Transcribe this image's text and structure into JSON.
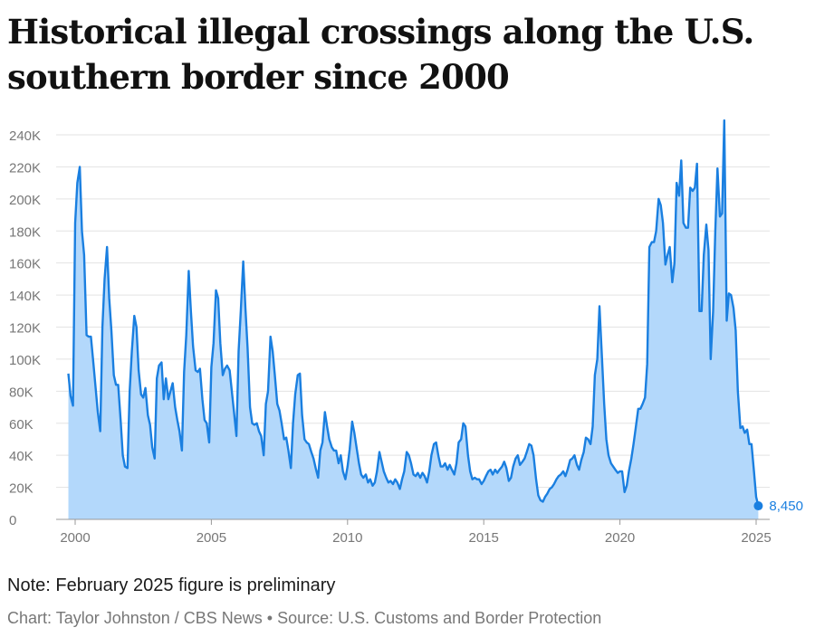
{
  "title": "Historical illegal crossings along the U.S. southern border since 2000",
  "note": "Note: February 2025 figure is preliminary",
  "credit": "Chart: Taylor Johnston / CBS News • Source: U.S. Customs and Border Protection",
  "colors": {
    "line": "#1a7fe0",
    "fill": "#b3d8fb",
    "grid": "#e3e3e3",
    "tick": "#777777",
    "label": "#1a7fe0"
  },
  "chart_data": {
    "type": "area",
    "grid": true,
    "ylim": [
      0,
      250000
    ],
    "xlim": [
      1999.75,
      2025.17
    ],
    "y_ticks": [
      {
        "value": 0,
        "label": "0"
      },
      {
        "value": 20000,
        "label": "20K"
      },
      {
        "value": 40000,
        "label": "40K"
      },
      {
        "value": 60000,
        "label": "60K"
      },
      {
        "value": 80000,
        "label": "80K"
      },
      {
        "value": 100000,
        "label": "100K"
      },
      {
        "value": 120000,
        "label": "120K"
      },
      {
        "value": 140000,
        "label": "140K"
      },
      {
        "value": 160000,
        "label": "160K"
      },
      {
        "value": 180000,
        "label": "180K"
      },
      {
        "value": 200000,
        "label": "200K"
      },
      {
        "value": 220000,
        "label": "220K"
      },
      {
        "value": 240000,
        "label": "240K"
      }
    ],
    "x_ticks": [
      {
        "value": 2000,
        "label": "2000"
      },
      {
        "value": 2005,
        "label": "2005"
      },
      {
        "value": 2010,
        "label": "2010"
      },
      {
        "value": 2015,
        "label": "2015"
      },
      {
        "value": 2020,
        "label": "2020"
      },
      {
        "value": 2025,
        "label": "2025"
      }
    ],
    "end_label": "8,450",
    "points": [
      [
        1999.75,
        91000
      ],
      [
        1999.83,
        77000
      ],
      [
        1999.92,
        71000
      ],
      [
        2000.0,
        185000
      ],
      [
        2000.08,
        210000
      ],
      [
        2000.17,
        220000
      ],
      [
        2000.25,
        180000
      ],
      [
        2000.33,
        165000
      ],
      [
        2000.42,
        115000
      ],
      [
        2000.5,
        114000
      ],
      [
        2000.58,
        114000
      ],
      [
        2000.67,
        97000
      ],
      [
        2000.75,
        82000
      ],
      [
        2000.83,
        67000
      ],
      [
        2000.92,
        55000
      ],
      [
        2001.0,
        120000
      ],
      [
        2001.08,
        150000
      ],
      [
        2001.17,
        170000
      ],
      [
        2001.25,
        138000
      ],
      [
        2001.33,
        118000
      ],
      [
        2001.42,
        90000
      ],
      [
        2001.5,
        84000
      ],
      [
        2001.58,
        84000
      ],
      [
        2001.67,
        62000
      ],
      [
        2001.75,
        40000
      ],
      [
        2001.83,
        33000
      ],
      [
        2001.92,
        32000
      ],
      [
        2002.0,
        80000
      ],
      [
        2002.08,
        105000
      ],
      [
        2002.17,
        127000
      ],
      [
        2002.25,
        120000
      ],
      [
        2002.33,
        93000
      ],
      [
        2002.42,
        78000
      ],
      [
        2002.5,
        76000
      ],
      [
        2002.58,
        82000
      ],
      [
        2002.67,
        65000
      ],
      [
        2002.75,
        59000
      ],
      [
        2002.83,
        45000
      ],
      [
        2002.92,
        38000
      ],
      [
        2003.0,
        88000
      ],
      [
        2003.08,
        96000
      ],
      [
        2003.17,
        98000
      ],
      [
        2003.25,
        75000
      ],
      [
        2003.33,
        88000
      ],
      [
        2003.42,
        75000
      ],
      [
        2003.5,
        80000
      ],
      [
        2003.58,
        85000
      ],
      [
        2003.67,
        70000
      ],
      [
        2003.75,
        62000
      ],
      [
        2003.83,
        55000
      ],
      [
        2003.92,
        43000
      ],
      [
        2004.0,
        92000
      ],
      [
        2004.08,
        115000
      ],
      [
        2004.17,
        155000
      ],
      [
        2004.25,
        130000
      ],
      [
        2004.33,
        108000
      ],
      [
        2004.42,
        93000
      ],
      [
        2004.5,
        92000
      ],
      [
        2004.58,
        94000
      ],
      [
        2004.67,
        75000
      ],
      [
        2004.75,
        62000
      ],
      [
        2004.83,
        60000
      ],
      [
        2004.92,
        48000
      ],
      [
        2005.0,
        95000
      ],
      [
        2005.08,
        110000
      ],
      [
        2005.17,
        143000
      ],
      [
        2005.25,
        138000
      ],
      [
        2005.33,
        110000
      ],
      [
        2005.42,
        90000
      ],
      [
        2005.5,
        94000
      ],
      [
        2005.58,
        96000
      ],
      [
        2005.67,
        93000
      ],
      [
        2005.75,
        80000
      ],
      [
        2005.83,
        67000
      ],
      [
        2005.92,
        52000
      ],
      [
        2006.0,
        105000
      ],
      [
        2006.08,
        130000
      ],
      [
        2006.17,
        161000
      ],
      [
        2006.25,
        132000
      ],
      [
        2006.33,
        107000
      ],
      [
        2006.42,
        70000
      ],
      [
        2006.5,
        60000
      ],
      [
        2006.58,
        59000
      ],
      [
        2006.67,
        60000
      ],
      [
        2006.75,
        55000
      ],
      [
        2006.83,
        52000
      ],
      [
        2006.92,
        40000
      ],
      [
        2007.0,
        72000
      ],
      [
        2007.08,
        80000
      ],
      [
        2007.17,
        114000
      ],
      [
        2007.25,
        105000
      ],
      [
        2007.33,
        90000
      ],
      [
        2007.42,
        72000
      ],
      [
        2007.5,
        68000
      ],
      [
        2007.58,
        60000
      ],
      [
        2007.67,
        50000
      ],
      [
        2007.75,
        51000
      ],
      [
        2007.83,
        43000
      ],
      [
        2007.92,
        32000
      ],
      [
        2008.0,
        60000
      ],
      [
        2008.08,
        78000
      ],
      [
        2008.17,
        90000
      ],
      [
        2008.25,
        91000
      ],
      [
        2008.33,
        65000
      ],
      [
        2008.42,
        50000
      ],
      [
        2008.5,
        48000
      ],
      [
        2008.58,
        47000
      ],
      [
        2008.67,
        42000
      ],
      [
        2008.75,
        38000
      ],
      [
        2008.83,
        32000
      ],
      [
        2008.92,
        26000
      ],
      [
        2009.0,
        43000
      ],
      [
        2009.08,
        48000
      ],
      [
        2009.17,
        67000
      ],
      [
        2009.25,
        58000
      ],
      [
        2009.33,
        50000
      ],
      [
        2009.42,
        45000
      ],
      [
        2009.5,
        43000
      ],
      [
        2009.58,
        43000
      ],
      [
        2009.67,
        35000
      ],
      [
        2009.75,
        40000
      ],
      [
        2009.83,
        30000
      ],
      [
        2009.92,
        25000
      ],
      [
        2010.0,
        33000
      ],
      [
        2010.08,
        44000
      ],
      [
        2010.17,
        61000
      ],
      [
        2010.25,
        54000
      ],
      [
        2010.33,
        45000
      ],
      [
        2010.42,
        35000
      ],
      [
        2010.5,
        28000
      ],
      [
        2010.58,
        26000
      ],
      [
        2010.67,
        28000
      ],
      [
        2010.75,
        23000
      ],
      [
        2010.83,
        25000
      ],
      [
        2010.92,
        21000
      ],
      [
        2011.0,
        23000
      ],
      [
        2011.08,
        30000
      ],
      [
        2011.17,
        42000
      ],
      [
        2011.25,
        36000
      ],
      [
        2011.33,
        30000
      ],
      [
        2011.42,
        26000
      ],
      [
        2011.5,
        23000
      ],
      [
        2011.58,
        24000
      ],
      [
        2011.67,
        22000
      ],
      [
        2011.75,
        25000
      ],
      [
        2011.83,
        23000
      ],
      [
        2011.92,
        19000
      ],
      [
        2012.0,
        25000
      ],
      [
        2012.08,
        30000
      ],
      [
        2012.17,
        42000
      ],
      [
        2012.25,
        40000
      ],
      [
        2012.33,
        35000
      ],
      [
        2012.42,
        28000
      ],
      [
        2012.5,
        27000
      ],
      [
        2012.58,
        29000
      ],
      [
        2012.67,
        26000
      ],
      [
        2012.75,
        29000
      ],
      [
        2012.83,
        27000
      ],
      [
        2012.92,
        23000
      ],
      [
        2013.0,
        30000
      ],
      [
        2013.08,
        40000
      ],
      [
        2013.17,
        47000
      ],
      [
        2013.25,
        48000
      ],
      [
        2013.33,
        40000
      ],
      [
        2013.42,
        33000
      ],
      [
        2013.5,
        33000
      ],
      [
        2013.58,
        35000
      ],
      [
        2013.67,
        31000
      ],
      [
        2013.75,
        34000
      ],
      [
        2013.83,
        31000
      ],
      [
        2013.92,
        28000
      ],
      [
        2014.0,
        35000
      ],
      [
        2014.08,
        48000
      ],
      [
        2014.17,
        50000
      ],
      [
        2014.25,
        60000
      ],
      [
        2014.33,
        58000
      ],
      [
        2014.42,
        40000
      ],
      [
        2014.5,
        30000
      ],
      [
        2014.58,
        25000
      ],
      [
        2014.67,
        26000
      ],
      [
        2014.75,
        25000
      ],
      [
        2014.83,
        25000
      ],
      [
        2014.92,
        22000
      ],
      [
        2015.0,
        24000
      ],
      [
        2015.08,
        27000
      ],
      [
        2015.17,
        30000
      ],
      [
        2015.25,
        31000
      ],
      [
        2015.33,
        28000
      ],
      [
        2015.42,
        31000
      ],
      [
        2015.5,
        29000
      ],
      [
        2015.58,
        31000
      ],
      [
        2015.67,
        33000
      ],
      [
        2015.75,
        36000
      ],
      [
        2015.83,
        32000
      ],
      [
        2015.92,
        24000
      ],
      [
        2016.0,
        26000
      ],
      [
        2016.08,
        33000
      ],
      [
        2016.17,
        38000
      ],
      [
        2016.25,
        40000
      ],
      [
        2016.33,
        34000
      ],
      [
        2016.42,
        36000
      ],
      [
        2016.5,
        38000
      ],
      [
        2016.58,
        42000
      ],
      [
        2016.67,
        47000
      ],
      [
        2016.75,
        46000
      ],
      [
        2016.83,
        40000
      ],
      [
        2016.92,
        25000
      ],
      [
        2017.0,
        15000
      ],
      [
        2017.08,
        12000
      ],
      [
        2017.17,
        11000
      ],
      [
        2017.25,
        14000
      ],
      [
        2017.33,
        16000
      ],
      [
        2017.42,
        19000
      ],
      [
        2017.5,
        20000
      ],
      [
        2017.58,
        22000
      ],
      [
        2017.67,
        25000
      ],
      [
        2017.75,
        27000
      ],
      [
        2017.83,
        28000
      ],
      [
        2017.92,
        30000
      ],
      [
        2018.0,
        27000
      ],
      [
        2018.08,
        31000
      ],
      [
        2018.17,
        37000
      ],
      [
        2018.25,
        38000
      ],
      [
        2018.33,
        40000
      ],
      [
        2018.42,
        34000
      ],
      [
        2018.5,
        31000
      ],
      [
        2018.58,
        37000
      ],
      [
        2018.67,
        42000
      ],
      [
        2018.75,
        51000
      ],
      [
        2018.83,
        50000
      ],
      [
        2018.92,
        47000
      ],
      [
        2019.0,
        58000
      ],
      [
        2019.08,
        90000
      ],
      [
        2019.17,
        100000
      ],
      [
        2019.25,
        133000
      ],
      [
        2019.33,
        105000
      ],
      [
        2019.42,
        72000
      ],
      [
        2019.5,
        50000
      ],
      [
        2019.58,
        40000
      ],
      [
        2019.67,
        35000
      ],
      [
        2019.75,
        33000
      ],
      [
        2019.83,
        31000
      ],
      [
        2019.92,
        29000
      ],
      [
        2020.0,
        30000
      ],
      [
        2020.08,
        30000
      ],
      [
        2020.17,
        17000
      ],
      [
        2020.25,
        21000
      ],
      [
        2020.33,
        30000
      ],
      [
        2020.42,
        38000
      ],
      [
        2020.5,
        47000
      ],
      [
        2020.58,
        57000
      ],
      [
        2020.67,
        69000
      ],
      [
        2020.75,
        69000
      ],
      [
        2020.83,
        72000
      ],
      [
        2020.92,
        76000
      ],
      [
        2021.0,
        97000
      ],
      [
        2021.08,
        170000
      ],
      [
        2021.17,
        173000
      ],
      [
        2021.25,
        173000
      ],
      [
        2021.33,
        180000
      ],
      [
        2021.42,
        200000
      ],
      [
        2021.5,
        196000
      ],
      [
        2021.58,
        185000
      ],
      [
        2021.67,
        159000
      ],
      [
        2021.75,
        165000
      ],
      [
        2021.83,
        170000
      ],
      [
        2021.92,
        148000
      ],
      [
        2022.0,
        160000
      ],
      [
        2022.08,
        210000
      ],
      [
        2022.17,
        202000
      ],
      [
        2022.25,
        224000
      ],
      [
        2022.33,
        185000
      ],
      [
        2022.42,
        182000
      ],
      [
        2022.5,
        182000
      ],
      [
        2022.58,
        207000
      ],
      [
        2022.67,
        205000
      ],
      [
        2022.75,
        207000
      ],
      [
        2022.83,
        222000
      ],
      [
        2022.92,
        130000
      ],
      [
        2023.0,
        130000
      ],
      [
        2023.08,
        165000
      ],
      [
        2023.17,
        184000
      ],
      [
        2023.25,
        168000
      ],
      [
        2023.33,
        100000
      ],
      [
        2023.42,
        130000
      ],
      [
        2023.5,
        180000
      ],
      [
        2023.58,
        219000
      ],
      [
        2023.67,
        189000
      ],
      [
        2023.75,
        191000
      ],
      [
        2023.83,
        249000
      ],
      [
        2023.92,
        124000
      ],
      [
        2024.0,
        141000
      ],
      [
        2024.08,
        140000
      ],
      [
        2024.17,
        132000
      ],
      [
        2024.25,
        118000
      ],
      [
        2024.33,
        80000
      ],
      [
        2024.42,
        57000
      ],
      [
        2024.5,
        58000
      ],
      [
        2024.58,
        54000
      ],
      [
        2024.67,
        56000
      ],
      [
        2024.75,
        47000
      ],
      [
        2024.83,
        47000
      ],
      [
        2024.92,
        30000
      ],
      [
        2025.0,
        14000
      ],
      [
        2025.08,
        8450
      ]
    ]
  }
}
